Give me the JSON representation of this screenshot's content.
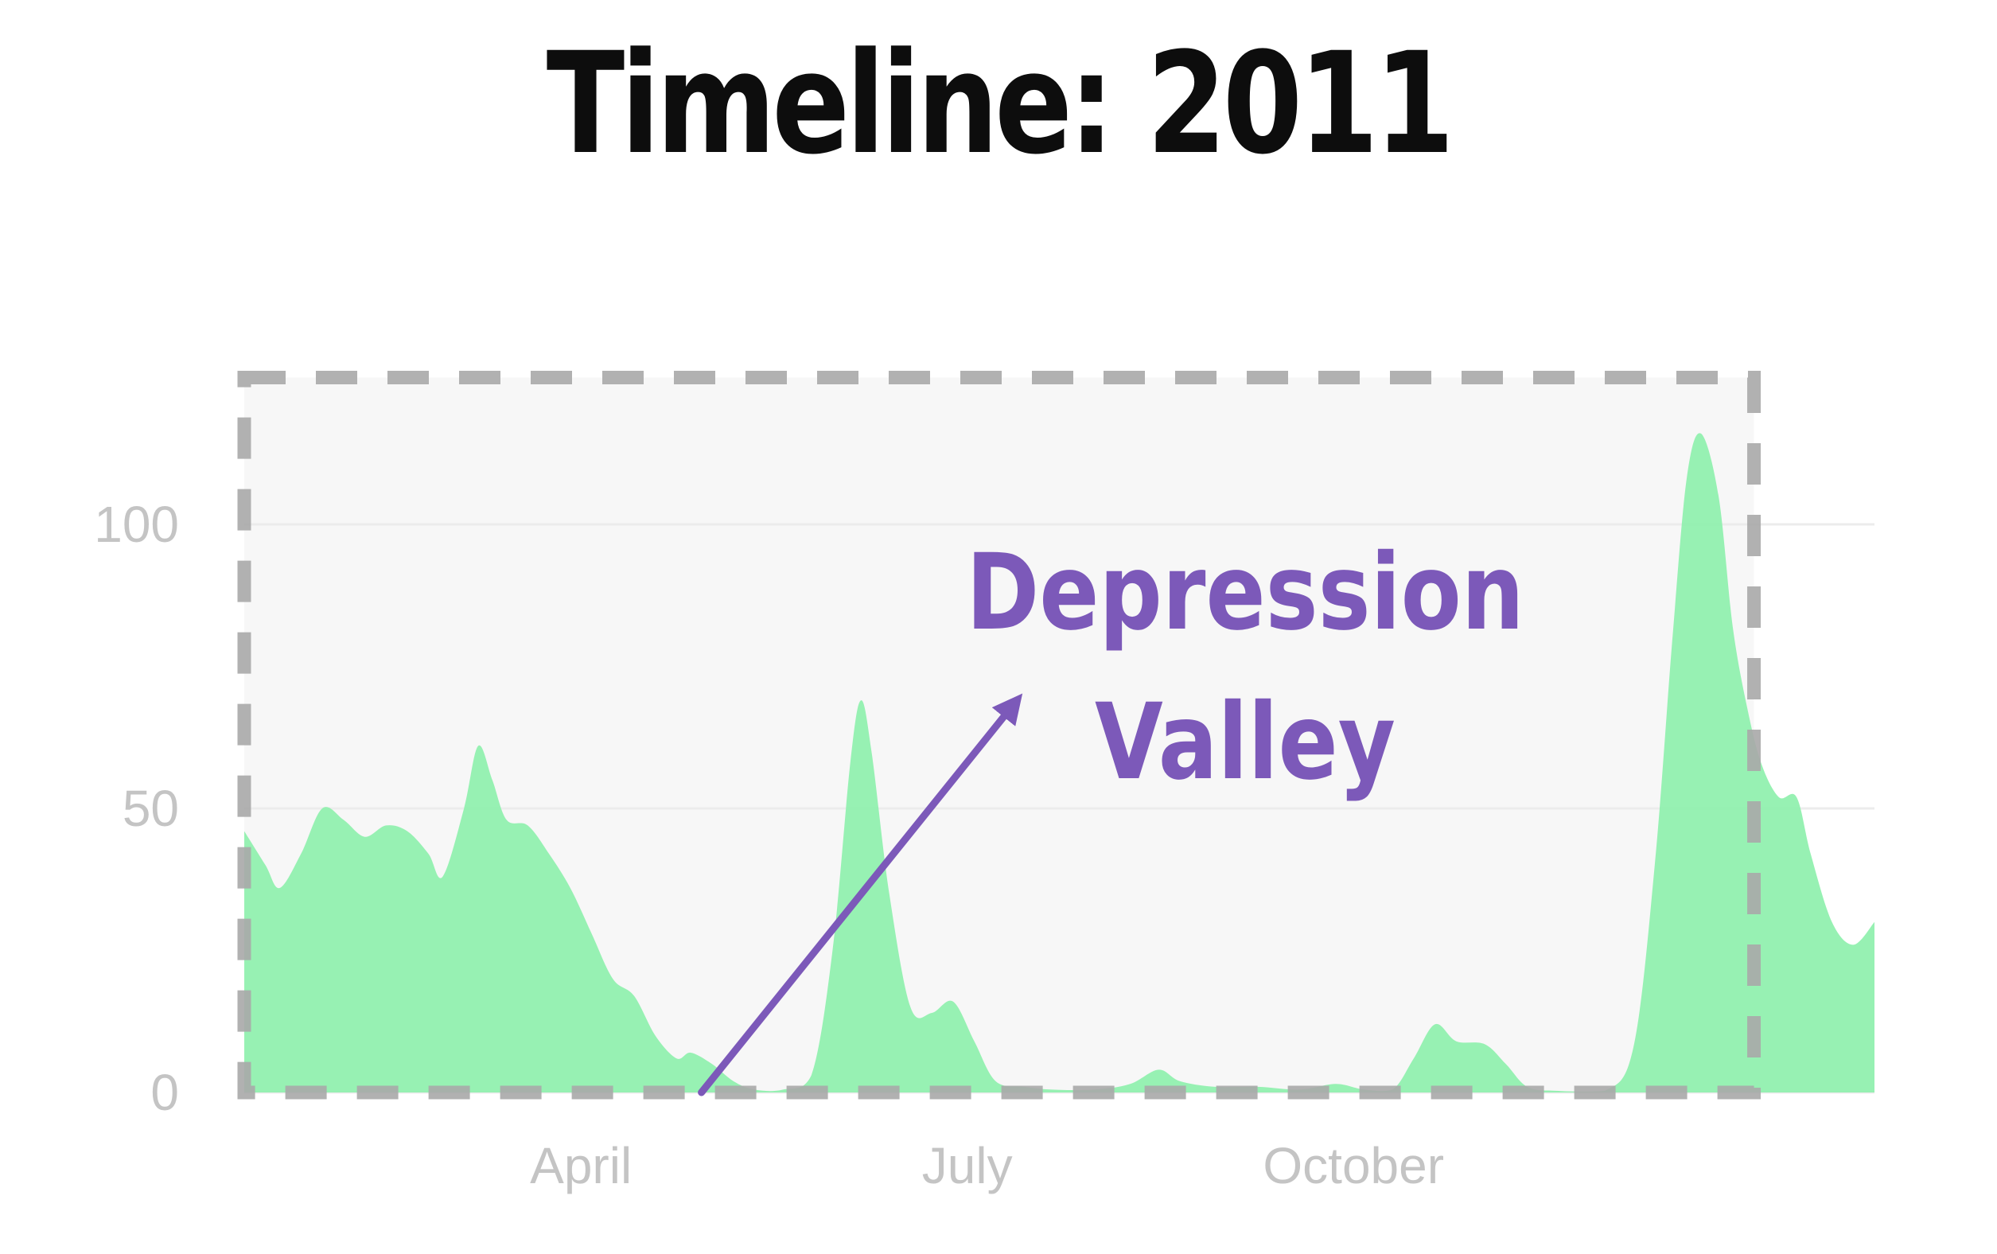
{
  "slide": {
    "title": "Timeline: 2011"
  },
  "chart_data": {
    "type": "area",
    "title": "Timeline: 2011",
    "xlabel": "",
    "ylabel": "",
    "x_ticks": [
      "April",
      "July",
      "October"
    ],
    "y_ticks": [
      0,
      50,
      100
    ],
    "ylim": [
      0,
      125
    ],
    "grid": "horizontal",
    "legend": "none",
    "series": [
      {
        "color": "#8ef0ac",
        "points": [
          [
            0.0,
            46
          ],
          [
            0.3,
            40
          ],
          [
            0.5,
            36
          ],
          [
            0.8,
            42
          ],
          [
            1.1,
            50
          ],
          [
            1.4,
            48
          ],
          [
            1.7,
            45
          ],
          [
            2.0,
            47
          ],
          [
            2.3,
            46
          ],
          [
            2.6,
            42
          ],
          [
            2.8,
            38
          ],
          [
            3.1,
            50
          ],
          [
            3.3,
            61
          ],
          [
            3.5,
            55
          ],
          [
            3.7,
            48
          ],
          [
            4.0,
            47
          ],
          [
            4.3,
            42
          ],
          [
            4.6,
            36
          ],
          [
            4.9,
            28
          ],
          [
            5.2,
            20
          ],
          [
            5.5,
            17
          ],
          [
            5.8,
            10
          ],
          [
            6.1,
            6
          ],
          [
            6.3,
            7
          ],
          [
            6.6,
            5
          ],
          [
            6.9,
            2
          ],
          [
            7.2,
            0.5
          ],
          [
            7.6,
            0.5
          ],
          [
            8.0,
            3
          ],
          [
            8.3,
            25
          ],
          [
            8.55,
            58
          ],
          [
            8.7,
            69
          ],
          [
            8.85,
            60
          ],
          [
            9.1,
            35
          ],
          [
            9.4,
            15
          ],
          [
            9.7,
            14
          ],
          [
            10.0,
            16
          ],
          [
            10.3,
            9
          ],
          [
            10.6,
            2
          ],
          [
            11.0,
            1
          ],
          [
            11.4,
            0.5
          ],
          [
            12.0,
            0.5
          ],
          [
            12.5,
            1.5
          ],
          [
            12.9,
            4
          ],
          [
            13.2,
            2
          ],
          [
            13.7,
            1
          ],
          [
            14.3,
            1
          ],
          [
            14.9,
            0.5
          ],
          [
            15.4,
            1.5
          ],
          [
            15.8,
            0.5
          ],
          [
            16.2,
            0.5
          ],
          [
            16.5,
            6
          ],
          [
            16.8,
            12
          ],
          [
            17.1,
            9
          ],
          [
            17.5,
            8.5
          ],
          [
            17.8,
            5
          ],
          [
            18.1,
            1
          ],
          [
            18.5,
            0.3
          ],
          [
            19.2,
            0.3
          ],
          [
            19.6,
            8
          ],
          [
            19.9,
            40
          ],
          [
            20.15,
            80
          ],
          [
            20.35,
            108
          ],
          [
            20.55,
            116
          ],
          [
            20.8,
            105
          ],
          [
            21.0,
            82
          ],
          [
            21.2,
            68
          ],
          [
            21.4,
            58
          ],
          [
            21.65,
            52
          ],
          [
            21.9,
            52
          ],
          [
            22.1,
            42
          ],
          [
            22.4,
            30
          ],
          [
            22.7,
            26
          ],
          [
            23.0,
            30
          ]
        ]
      }
    ],
    "annotations": [
      {
        "text_lines": [
          "Depression",
          "Valley"
        ],
        "color": "#7c59b9",
        "arrow_from": [
          6.45,
          0
        ],
        "arrow_to": [
          10.9,
          69
        ]
      }
    ],
    "highlight_box": {
      "x_range": [
        0.0,
        21.3
      ],
      "y_range": [
        0,
        125
      ],
      "style": "dashed",
      "color": "#a8a8a8"
    }
  }
}
